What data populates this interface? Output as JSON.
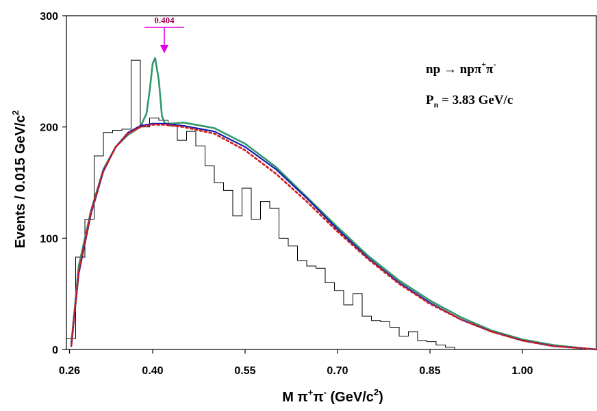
{
  "chart_data": {
    "type": "line",
    "xlabel": {
      "main": "M π",
      "sup1": "+",
      "mid": "π",
      "sup2": "-",
      "tail": " (GeV/c",
      "sup3": "2",
      "end": ")"
    },
    "ylabel": {
      "main": "Events / 0.015 GeV/c",
      "sup": "2"
    },
    "xlim": [
      0.26,
      1.12
    ],
    "ylim": [
      0,
      300
    ],
    "x_ticks": [
      0.265,
      0.4,
      0.55,
      0.7,
      0.85,
      1.0
    ],
    "x_tick_labels": [
      "0.26",
      "0.40",
      "0.55",
      "0.70",
      "0.85",
      "1.00"
    ],
    "y_ticks": [
      0,
      100,
      200,
      300
    ],
    "y_tick_labels": [
      "0",
      "100",
      "200",
      "300"
    ],
    "annotations": {
      "reaction": {
        "a": "np ",
        "arrow": "→",
        "b": " npπ",
        "sup1": "+",
        "c": "π",
        "sup2": "-"
      },
      "momentum": {
        "a": "P",
        "sub": "n",
        "b": " = 3.83 GeV/c"
      },
      "peak_label": "0.404",
      "peak_x": 0.404
    },
    "series": [
      {
        "kind": "histogram",
        "color": "#000000",
        "bin_width": 0.015,
        "x_start": 0.26,
        "values": [
          10,
          83,
          117,
          174,
          195,
          197,
          198,
          260,
          200,
          208,
          206,
          201,
          188,
          196,
          183,
          165,
          150,
          143,
          120,
          145,
          117,
          133,
          127,
          100,
          93,
          80,
          75,
          73,
          60,
          53,
          40,
          50,
          30,
          26,
          25,
          20,
          12,
          16,
          8,
          7,
          4,
          2
        ]
      },
      {
        "kind": "fit-with-resonance",
        "color": "#2e9a6a",
        "x": [
          0.268,
          0.28,
          0.3,
          0.32,
          0.34,
          0.36,
          0.38,
          0.39,
          0.395,
          0.4,
          0.404,
          0.41,
          0.415,
          0.42,
          0.43,
          0.45,
          0.5,
          0.55,
          0.6,
          0.65,
          0.7,
          0.75,
          0.8,
          0.85,
          0.9,
          0.95,
          1.0,
          1.05,
          1.1,
          1.12
        ],
        "y": [
          5,
          75,
          125,
          162,
          182,
          193,
          200,
          212,
          232,
          257,
          262,
          242,
          210,
          203,
          203,
          204,
          199,
          185,
          164,
          137,
          110,
          84,
          62,
          44,
          29,
          17,
          9,
          4,
          1,
          0
        ]
      },
      {
        "kind": "background-fit",
        "color": "#1a1ab0",
        "x": [
          0.268,
          0.28,
          0.3,
          0.32,
          0.34,
          0.36,
          0.38,
          0.4,
          0.42,
          0.45,
          0.5,
          0.55,
          0.6,
          0.65,
          0.7,
          0.75,
          0.8,
          0.85,
          0.9,
          0.95,
          1.0,
          1.05,
          1.1,
          1.12
        ],
        "y": [
          3,
          68,
          122,
          160,
          182,
          195,
          201,
          203,
          203,
          201,
          196,
          182,
          162,
          136,
          108,
          82,
          60,
          42,
          27,
          16,
          8,
          3,
          1,
          0
        ]
      },
      {
        "kind": "phase-space",
        "color": "#d02020",
        "dashed": true,
        "x": [
          0.268,
          0.28,
          0.3,
          0.32,
          0.34,
          0.36,
          0.38,
          0.4,
          0.42,
          0.45,
          0.5,
          0.55,
          0.6,
          0.65,
          0.7,
          0.75,
          0.8,
          0.85,
          0.9,
          0.95,
          1.0,
          1.05,
          1.1,
          1.12
        ],
        "y": [
          4,
          70,
          124,
          161,
          182,
          194,
          200,
          202,
          202,
          200,
          194,
          179,
          158,
          133,
          106,
          81,
          59,
          41,
          27,
          16,
          8,
          3,
          1,
          0
        ]
      }
    ]
  }
}
